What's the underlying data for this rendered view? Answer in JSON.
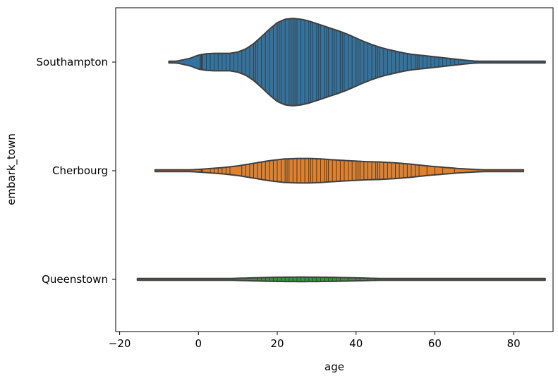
{
  "chart_data": {
    "type": "violin",
    "orientation": "horizontal",
    "title": "",
    "xlabel": "age",
    "ylabel": "embark_town",
    "xlim": [
      -21,
      90
    ],
    "x_ticks": [
      -20,
      0,
      20,
      40,
      60,
      80
    ],
    "x_tick_labels": [
      "−20",
      "0",
      "20",
      "40",
      "60",
      "80"
    ],
    "categories": [
      "Southampton",
      "Cherbourg",
      "Queenstown"
    ],
    "inner": "stick",
    "series": [
      {
        "name": "Southampton",
        "color": "#3274a1",
        "min": -7.5,
        "max": 88,
        "density_profile": [
          [
            -7.5,
            0.0
          ],
          [
            -5,
            0.03
          ],
          [
            -2,
            0.09
          ],
          [
            0,
            0.16
          ],
          [
            2,
            0.19
          ],
          [
            4,
            0.2
          ],
          [
            6,
            0.2
          ],
          [
            8,
            0.2
          ],
          [
            10,
            0.23
          ],
          [
            12,
            0.3
          ],
          [
            14,
            0.42
          ],
          [
            16,
            0.58
          ],
          [
            18,
            0.75
          ],
          [
            20,
            0.9
          ],
          [
            22,
            0.98
          ],
          [
            24,
            1.0
          ],
          [
            26,
            0.98
          ],
          [
            28,
            0.94
          ],
          [
            30,
            0.88
          ],
          [
            32,
            0.82
          ],
          [
            34,
            0.76
          ],
          [
            36,
            0.7
          ],
          [
            38,
            0.63
          ],
          [
            40,
            0.55
          ],
          [
            42,
            0.47
          ],
          [
            44,
            0.4
          ],
          [
            46,
            0.34
          ],
          [
            48,
            0.29
          ],
          [
            50,
            0.25
          ],
          [
            52,
            0.21
          ],
          [
            54,
            0.18
          ],
          [
            56,
            0.16
          ],
          [
            58,
            0.14
          ],
          [
            60,
            0.12
          ],
          [
            62,
            0.1
          ],
          [
            64,
            0.08
          ],
          [
            66,
            0.06
          ],
          [
            68,
            0.04
          ],
          [
            70,
            0.025
          ],
          [
            74,
            0.012
          ],
          [
            80,
            0.005
          ],
          [
            88,
            0.0
          ]
        ],
        "ages": [
          0.42,
          0.67,
          0.75,
          0.83,
          0.92,
          1,
          2,
          3,
          4,
          5,
          6,
          7,
          8,
          9,
          10,
          11,
          12,
          13,
          14,
          14.5,
          15,
          16,
          17,
          18,
          19,
          20,
          20.5,
          21,
          22,
          23,
          23.5,
          24,
          24.5,
          25,
          26,
          27,
          28,
          28.5,
          29,
          30,
          30.5,
          31,
          32,
          32.5,
          33,
          34,
          34.5,
          35,
          36,
          36.5,
          37,
          38,
          39,
          40,
          40.5,
          41,
          42,
          43,
          44,
          45,
          45.5,
          46,
          47,
          48,
          49,
          50,
          51,
          52,
          53,
          54,
          55,
          55.5,
          56,
          57,
          58,
          59,
          60,
          61,
          62,
          63,
          64,
          65,
          66,
          70,
          70.5,
          71,
          74,
          80
        ]
      },
      {
        "name": "Cherbourg",
        "color": "#e1812c",
        "min": -11,
        "max": 82.5,
        "density_profile": [
          [
            -11,
            0.0
          ],
          [
            -6,
            0.01
          ],
          [
            -2,
            0.02
          ],
          [
            0,
            0.03
          ],
          [
            3,
            0.05
          ],
          [
            6,
            0.07
          ],
          [
            10,
            0.11
          ],
          [
            14,
            0.17
          ],
          [
            18,
            0.23
          ],
          [
            22,
            0.27
          ],
          [
            25,
            0.28
          ],
          [
            28,
            0.28
          ],
          [
            31,
            0.27
          ],
          [
            34,
            0.25
          ],
          [
            38,
            0.23
          ],
          [
            42,
            0.21
          ],
          [
            46,
            0.2
          ],
          [
            50,
            0.18
          ],
          [
            54,
            0.15
          ],
          [
            58,
            0.11
          ],
          [
            62,
            0.08
          ],
          [
            66,
            0.05
          ],
          [
            70,
            0.03
          ],
          [
            74,
            0.015
          ],
          [
            78,
            0.006
          ],
          [
            82.5,
            0.0
          ]
        ],
        "ages": [
          0.42,
          0.75,
          0.92,
          1,
          3,
          4,
          5,
          6,
          7,
          8,
          11,
          12,
          13,
          14,
          15,
          16,
          17,
          18,
          19,
          20,
          21,
          22,
          22.5,
          23,
          24,
          25,
          26,
          27,
          28,
          28.5,
          29,
          30,
          31,
          32,
          32.5,
          33,
          34,
          35,
          36,
          37,
          38,
          39,
          40,
          40.5,
          41,
          42,
          43,
          44,
          45,
          45.5,
          46,
          47,
          48,
          49,
          50,
          51,
          52,
          53,
          54,
          55,
          56,
          58,
          60,
          62,
          65,
          71
        ]
      },
      {
        "name": "Queenstown",
        "color": "#3a923a",
        "min": -15.5,
        "max": 88,
        "density_profile": [
          [
            -15.5,
            0.0
          ],
          [
            -5,
            0.004
          ],
          [
            5,
            0.012
          ],
          [
            12,
            0.03
          ],
          [
            18,
            0.045
          ],
          [
            22,
            0.05
          ],
          [
            26,
            0.052
          ],
          [
            30,
            0.05
          ],
          [
            34,
            0.046
          ],
          [
            40,
            0.035
          ],
          [
            46,
            0.02
          ],
          [
            55,
            0.01
          ],
          [
            65,
            0.006
          ],
          [
            75,
            0.004
          ],
          [
            88,
            0.0
          ]
        ],
        "ages": [
          2,
          9,
          15,
          16,
          17,
          18,
          19,
          20,
          21,
          22,
          23,
          24,
          25,
          26,
          27,
          28,
          29,
          30,
          31,
          32,
          33,
          34,
          35,
          36,
          38,
          40,
          41,
          43,
          45
        ]
      }
    ]
  }
}
